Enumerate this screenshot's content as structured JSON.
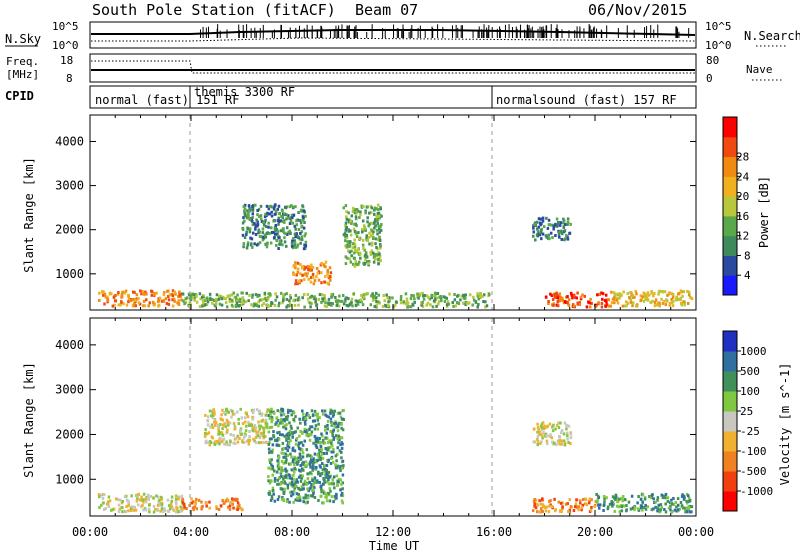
{
  "header": {
    "station": "South Pole Station (fitACF)",
    "beam": "Beam 07",
    "date": "06/Nov/2015"
  },
  "sky_panel": {
    "left_label": "N.Sky",
    "right_label": "N.Search",
    "left_ticks": [
      "10^5",
      "10^0"
    ],
    "right_ticks": [
      "10^5",
      "10^0"
    ]
  },
  "freq_panel": {
    "left_label_line1": "Freq.",
    "left_label_line2": "[MHz]",
    "left_ticks": [
      "18",
      "8"
    ],
    "right_label": "Nave",
    "right_ticks": [
      "80",
      "0"
    ]
  },
  "cpid": {
    "label": "CPID",
    "segments": [
      {
        "name": "normal (fast) 151 RF",
        "start_hour": 0,
        "end_hour": 4
      },
      {
        "name": "themis 3300 RF",
        "start_hour": 4,
        "end_hour": 16
      },
      {
        "name": "normalsound (fast) 157 RF",
        "start_hour": 16,
        "end_hour": 24
      }
    ]
  },
  "x_axis": {
    "label": "Time UT",
    "ticks": [
      "00:00",
      "04:00",
      "08:00",
      "12:00",
      "16:00",
      "20:00",
      "00:00"
    ]
  },
  "chart_data": [
    {
      "type": "heatmap",
      "title": "",
      "xlabel": "Time UT",
      "ylabel": "Slant Range [km]",
      "xlim_hours": [
        0,
        24
      ],
      "ylim_km": [
        180,
        4600
      ],
      "y_ticks": [
        "1000",
        "2000",
        "3000",
        "4000"
      ],
      "colorbar": {
        "label": "Power [dB]",
        "ticks": [
          "4",
          "8",
          "12",
          "16",
          "20",
          "24",
          "28"
        ],
        "range": [
          0,
          30
        ],
        "colors": [
          "#1a1aff",
          "#2a4aa0",
          "#3f8a5a",
          "#5aa84a",
          "#b8c83a",
          "#f0b020",
          "#f08a10",
          "#f04a10",
          "#ff0000"
        ]
      },
      "echo_regions": [
        {
          "t0": 0.3,
          "t1": 3.6,
          "r0": 300,
          "r1": 650,
          "level": 24
        },
        {
          "t0": 3.6,
          "t1": 15.8,
          "r0": 280,
          "r1": 600,
          "level": 10
        },
        {
          "t0": 6.0,
          "t1": 8.5,
          "r0": 1600,
          "r1": 2600,
          "level": 8
        },
        {
          "t0": 8.0,
          "t1": 9.5,
          "r0": 800,
          "r1": 1300,
          "level": 22
        },
        {
          "t0": 10.0,
          "t1": 11.5,
          "r0": 1200,
          "r1": 2600,
          "level": 10
        },
        {
          "t0": 17.5,
          "t1": 19.0,
          "r0": 1800,
          "r1": 2300,
          "level": 6
        },
        {
          "t0": 18.0,
          "t1": 20.5,
          "r0": 280,
          "r1": 600,
          "level": 28
        },
        {
          "t0": 20.5,
          "t1": 23.8,
          "r0": 300,
          "r1": 650,
          "level": 18
        }
      ]
    },
    {
      "type": "heatmap",
      "title": "",
      "xlabel": "Time UT",
      "ylabel": "Slant Range [km]",
      "xlim_hours": [
        0,
        24
      ],
      "ylim_km": [
        180,
        4600
      ],
      "y_ticks": [
        "1000",
        "2000",
        "3000",
        "4000"
      ],
      "colorbar": {
        "label": "Velocity [m s^-1]",
        "ticks": [
          "1000",
          "500",
          "100",
          "25",
          "-25",
          "-100",
          "-500",
          "-1000"
        ],
        "colors": [
          "#2030c0",
          "#3070a0",
          "#40905a",
          "#80c840",
          "#c8c8c0",
          "#f0b030",
          "#f08020",
          "#f04010",
          "#ff0000"
        ]
      },
      "echo_regions": [
        {
          "t0": 0.3,
          "t1": 3.6,
          "r0": 300,
          "r1": 700,
          "velocity": 0
        },
        {
          "t0": 3.6,
          "t1": 6.0,
          "r0": 350,
          "r1": 600,
          "velocity": -100
        },
        {
          "t0": 4.5,
          "t1": 7.0,
          "r0": 1800,
          "r1": 2600,
          "velocity": 0
        },
        {
          "t0": 7.0,
          "t1": 10.0,
          "r0": 500,
          "r1": 2600,
          "velocity": 100
        },
        {
          "t0": 17.5,
          "t1": 19.0,
          "r0": 1800,
          "r1": 2300,
          "velocity": 0
        },
        {
          "t0": 17.5,
          "t1": 20.0,
          "r0": 300,
          "r1": 600,
          "velocity": -100
        },
        {
          "t0": 20.0,
          "t1": 23.8,
          "r0": 300,
          "r1": 700,
          "velocity": 100
        }
      ]
    }
  ]
}
